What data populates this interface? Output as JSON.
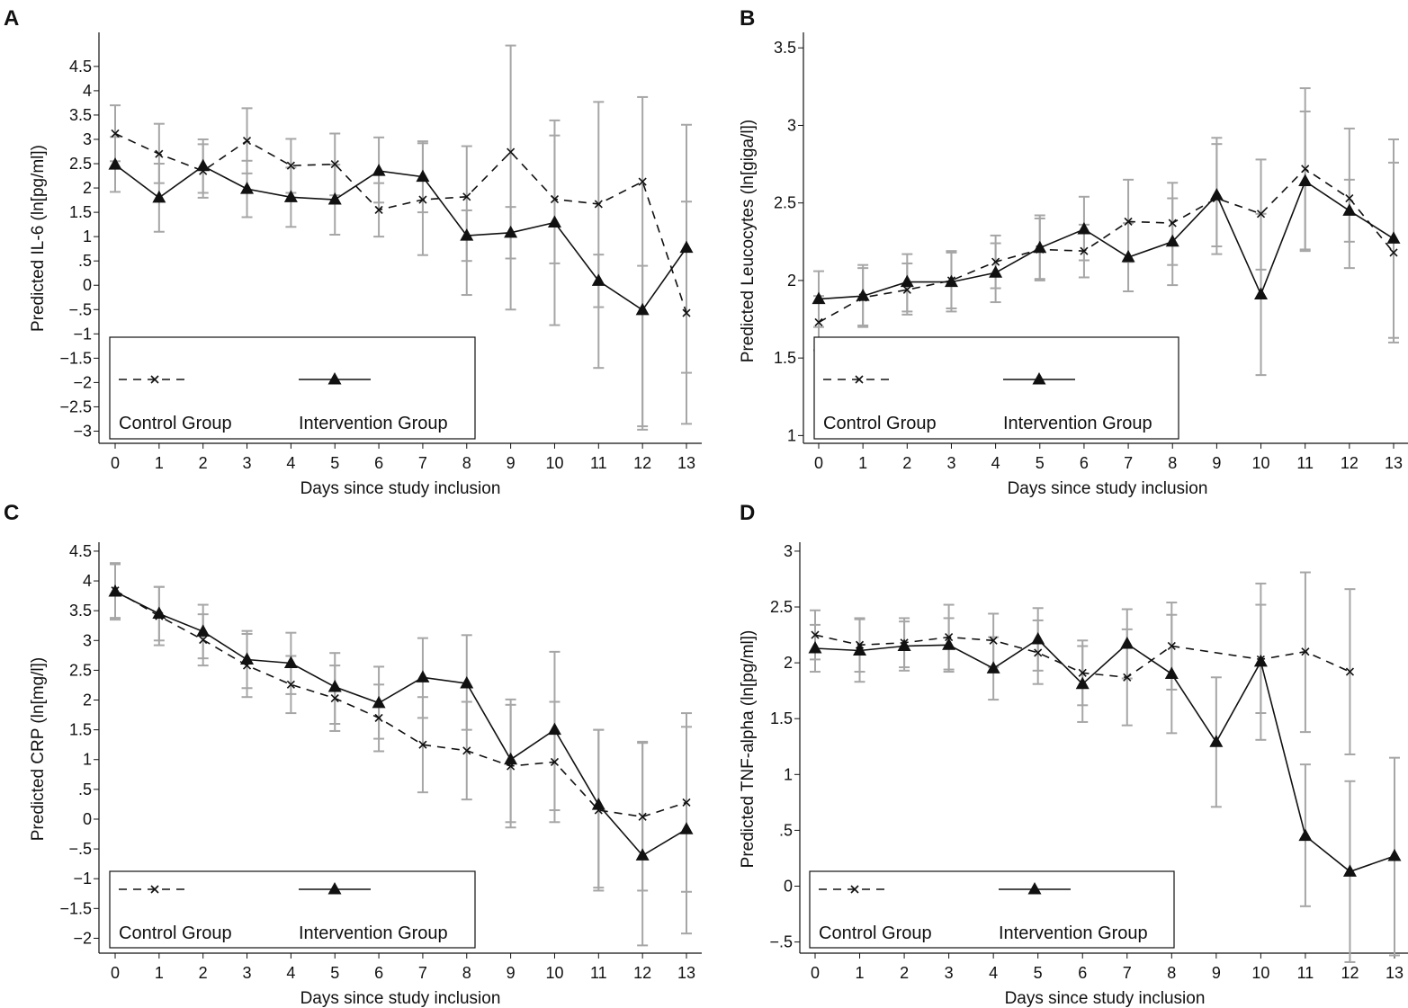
{
  "figure": {
    "legend": {
      "control_label": "Control Group",
      "intervention_label": "Intervention Group"
    },
    "colors": {
      "line": "#111111",
      "error_bar": "#a6a6a6",
      "axis": "#111111"
    }
  },
  "chart_data": [
    {
      "panel": "A",
      "type": "line",
      "xlabel": "Days since study inclusion",
      "ylabel": "Predicted IL-6 (ln[pg/ml])",
      "ylim": [
        -3.25,
        5.2
      ],
      "yticks": [
        -3,
        -2.5,
        -2,
        -1.5,
        -1,
        -0.5,
        0,
        0.5,
        1,
        1.5,
        2,
        2.5,
        3,
        3.5,
        4,
        4.5
      ],
      "ytick_labels": [
        "−3",
        "−2.5",
        "−2",
        "−1.5",
        "−1",
        "−.5",
        "0",
        ".5",
        "1",
        "1.5",
        "2",
        "2.5",
        "3",
        "3.5",
        "4",
        "4.5"
      ],
      "x": [
        0,
        1,
        2,
        3,
        4,
        5,
        6,
        7,
        8,
        9,
        10,
        11,
        12,
        13
      ],
      "series": [
        {
          "name": "Control Group",
          "style": "dashed",
          "marker": "x",
          "values": [
            3.12,
            2.7,
            2.35,
            2.97,
            2.46,
            2.49,
            1.55,
            1.76,
            1.82,
            2.74,
            1.77,
            1.67,
            2.13,
            -0.57
          ],
          "lower": [
            2.55,
            2.1,
            1.8,
            2.3,
            1.9,
            1.85,
            1.0,
            0.62,
            -0.2,
            -0.5,
            -0.82,
            -1.7,
            -2.97,
            -2.85
          ],
          "upper": [
            3.7,
            3.32,
            2.9,
            3.64,
            3.01,
            3.12,
            2.1,
            2.92,
            2.86,
            4.93,
            3.39,
            3.77,
            3.87,
            1.72
          ]
        },
        {
          "name": "Intervention Group",
          "style": "solid",
          "marker": "triangle",
          "values": [
            2.48,
            1.8,
            2.45,
            1.98,
            1.81,
            1.76,
            2.35,
            2.23,
            1.02,
            1.08,
            1.29,
            0.09,
            -0.51,
            0.77
          ],
          "lower": [
            1.92,
            1.1,
            1.9,
            1.4,
            1.2,
            1.04,
            1.7,
            1.5,
            0.5,
            0.55,
            0.45,
            -0.45,
            -2.9,
            -1.8
          ],
          "upper": [
            3.05,
            2.5,
            3.0,
            2.56,
            2.42,
            2.48,
            3.04,
            2.96,
            1.54,
            1.61,
            3.08,
            0.63,
            0.4,
            3.3
          ]
        }
      ]
    },
    {
      "panel": "B",
      "type": "line",
      "xlabel": "Days since study inclusion",
      "ylabel": "Predicted Leucocytes (ln[giga/l])",
      "ylim": [
        0.95,
        3.6
      ],
      "yticks": [
        1,
        1.5,
        2,
        2.5,
        3,
        3.5
      ],
      "ytick_labels": [
        "1",
        "1.5",
        "2",
        "2.5",
        "3",
        "3.5"
      ],
      "x": [
        0,
        1,
        2,
        3,
        4,
        5,
        6,
        7,
        8,
        9,
        10,
        11,
        12,
        13
      ],
      "series": [
        {
          "name": "Control Group",
          "style": "dashed",
          "marker": "x",
          "values": [
            1.73,
            1.89,
            1.94,
            2.0,
            2.12,
            2.2,
            2.19,
            2.38,
            2.37,
            2.53,
            2.43,
            2.72,
            2.53,
            2.18
          ],
          "lower": [
            1.55,
            1.7,
            1.78,
            1.82,
            1.95,
            2.0,
            2.02,
            2.12,
            2.1,
            2.17,
            2.07,
            2.2,
            2.08,
            1.6
          ],
          "upper": [
            1.9,
            2.08,
            2.11,
            2.18,
            2.29,
            2.4,
            2.36,
            2.65,
            2.63,
            2.92,
            2.78,
            3.24,
            2.98,
            2.76
          ]
        },
        {
          "name": "Intervention Group",
          "style": "solid",
          "marker": "triangle",
          "values": [
            1.88,
            1.9,
            1.99,
            1.99,
            2.05,
            2.21,
            2.33,
            2.15,
            2.25,
            2.55,
            1.91,
            2.64,
            2.45,
            2.27
          ],
          "lower": [
            1.7,
            1.71,
            1.8,
            1.8,
            1.86,
            2.01,
            2.13,
            1.93,
            1.97,
            2.22,
            1.39,
            2.19,
            2.25,
            1.63
          ],
          "upper": [
            2.06,
            2.1,
            2.17,
            2.19,
            2.24,
            2.42,
            2.54,
            2.37,
            2.53,
            2.88,
            2.43,
            3.09,
            2.65,
            2.91
          ]
        }
      ]
    },
    {
      "panel": "C",
      "type": "line",
      "xlabel": "Days since study inclusion",
      "ylabel": "Predicted CRP (ln[mg/l])",
      "ylim": [
        -2.25,
        4.65
      ],
      "yticks": [
        -2,
        -1.5,
        -1,
        -0.5,
        0,
        0.5,
        1,
        1.5,
        2,
        2.5,
        3,
        3.5,
        4,
        4.5
      ],
      "ytick_labels": [
        "−2",
        "−1.5",
        "−1",
        "−.5",
        "0",
        ".5",
        "1",
        "1.5",
        "2",
        "2.5",
        "3",
        "3.5",
        "4",
        "4.5"
      ],
      "x": [
        0,
        1,
        2,
        3,
        4,
        5,
        6,
        7,
        8,
        9,
        10,
        11,
        12,
        13
      ],
      "series": [
        {
          "name": "Control Group",
          "style": "dashed",
          "marker": "x",
          "values": [
            3.84,
            3.41,
            3.01,
            2.58,
            2.26,
            2.03,
            1.7,
            1.25,
            1.15,
            0.89,
            0.96,
            0.15,
            0.04,
            0.28
          ],
          "lower": [
            3.38,
            2.92,
            2.58,
            2.05,
            1.78,
            1.48,
            1.14,
            0.45,
            0.33,
            -0.14,
            -0.05,
            -1.2,
            -1.2,
            -1.22
          ],
          "upper": [
            4.3,
            3.9,
            3.44,
            3.11,
            2.74,
            2.58,
            2.26,
            2.05,
            1.97,
            1.92,
            1.97,
            1.5,
            1.28,
            1.78
          ]
        },
        {
          "name": "Intervention Group",
          "style": "solid",
          "marker": "triangle",
          "values": [
            3.82,
            3.45,
            3.15,
            2.68,
            2.62,
            2.22,
            1.95,
            2.38,
            2.28,
            1.0,
            1.5,
            0.24,
            -0.61,
            -0.17
          ],
          "lower": [
            3.35,
            3.0,
            2.7,
            2.2,
            2.1,
            1.6,
            1.35,
            1.7,
            1.5,
            -0.05,
            0.15,
            -1.15,
            -2.12,
            -1.92
          ],
          "upper": [
            4.28,
            3.9,
            3.6,
            3.16,
            3.13,
            2.79,
            2.56,
            3.04,
            3.09,
            2.01,
            2.81,
            1.5,
            1.3,
            1.55
          ]
        }
      ]
    },
    {
      "panel": "D",
      "type": "line",
      "xlabel": "Days since study inclusion",
      "ylabel": "Predicted TNF-alpha (ln[pg/ml])",
      "ylim": [
        -0.6,
        3.08
      ],
      "yticks": [
        -0.5,
        0,
        0.5,
        1,
        1.5,
        2,
        2.5,
        3
      ],
      "ytick_labels": [
        "−.5",
        "0",
        ".5",
        "1",
        "1.5",
        "2",
        "2.5",
        "3"
      ],
      "x": [
        0,
        1,
        2,
        3,
        4,
        5,
        6,
        7,
        8,
        9,
        10,
        11,
        12,
        13
      ],
      "series": [
        {
          "name": "Control Group",
          "style": "dashed",
          "marker": "x",
          "x": [
            0,
            1,
            2,
            3,
            4,
            5,
            6,
            7,
            8,
            10,
            11,
            12
          ],
          "values": [
            2.25,
            2.16,
            2.18,
            2.23,
            2.2,
            2.09,
            1.91,
            1.87,
            2.15,
            2.03,
            2.1,
            1.92
          ],
          "lower": [
            2.03,
            1.92,
            1.96,
            1.94,
            1.96,
            1.81,
            1.62,
            1.44,
            1.76,
            1.55,
            1.38,
            1.18
          ],
          "upper": [
            2.47,
            2.4,
            2.4,
            2.52,
            2.44,
            2.38,
            2.2,
            2.3,
            2.54,
            2.52,
            2.81,
            2.66
          ]
        },
        {
          "name": "Intervention Group",
          "style": "solid",
          "marker": "triangle",
          "x": [
            0,
            1,
            2,
            3,
            4,
            5,
            6,
            7,
            8,
            9,
            10,
            11,
            12,
            13
          ],
          "values": [
            2.13,
            2.11,
            2.15,
            2.16,
            1.95,
            2.21,
            1.81,
            2.17,
            1.9,
            1.29,
            2.01,
            0.45,
            0.13,
            0.27
          ],
          "lower": [
            1.92,
            1.83,
            1.93,
            1.92,
            1.67,
            1.93,
            1.47,
            1.86,
            1.37,
            0.71,
            1.31,
            -0.18,
            -0.68,
            -0.62
          ],
          "upper": [
            2.34,
            2.39,
            2.37,
            2.4,
            2.23,
            2.49,
            2.15,
            2.48,
            2.43,
            1.87,
            2.71,
            1.09,
            0.94,
            1.15
          ]
        }
      ]
    }
  ]
}
